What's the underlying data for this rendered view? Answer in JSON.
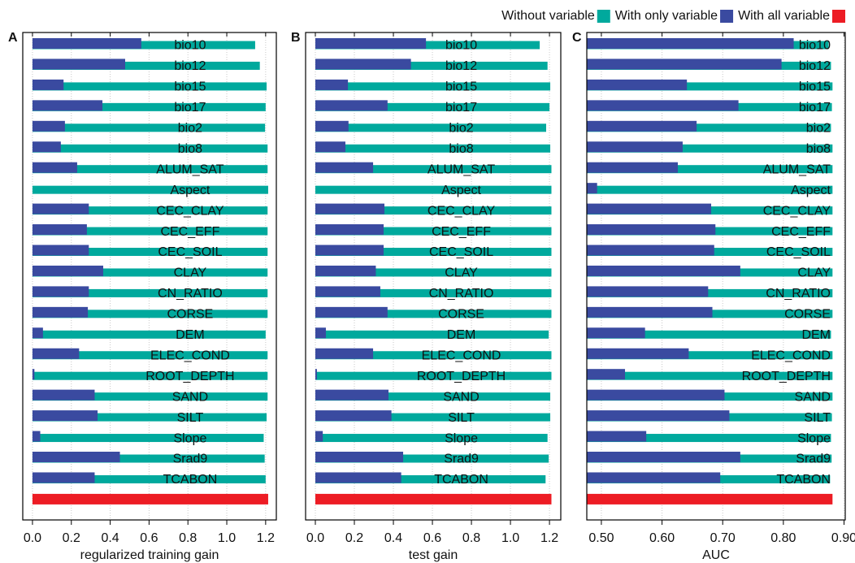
{
  "chart_data": [
    {
      "type": "bar",
      "orientation": "horizontal",
      "panel_label": "A",
      "xlabel": "regularized training gain",
      "categories": [
        "bio10",
        "bio12",
        "bio15",
        "bio17",
        "bio2",
        "bio8",
        "ALUM_SAT",
        "Aspect",
        "CEC_CLAY",
        "CEC_EFF",
        "CEC_SOIL",
        "CLAY",
        "CN_RATIO",
        "CORSE",
        "DEM",
        "ELEC_COND",
        "ROOT_DEPTH",
        "SAND",
        "SILT",
        "Slope",
        "Srad9",
        "TCABON",
        null
      ],
      "series": [
        {
          "name": "Without variable",
          "color": "#00a99d",
          "values": [
            1.146,
            1.17,
            1.205,
            1.2,
            1.197,
            1.21,
            1.21,
            1.213,
            1.21,
            1.21,
            1.21,
            1.21,
            1.21,
            1.21,
            1.2,
            1.21,
            1.21,
            1.21,
            1.205,
            1.19,
            1.195,
            1.2,
            null
          ]
        },
        {
          "name": "With only variable",
          "color": "#3a4aa0",
          "values": [
            0.56,
            0.477,
            0.16,
            0.36,
            0.167,
            0.146,
            0.23,
            0.0,
            0.29,
            0.28,
            0.29,
            0.364,
            0.29,
            0.285,
            0.054,
            0.24,
            0.01,
            0.32,
            0.335,
            0.04,
            0.45,
            0.32,
            null
          ]
        },
        {
          "name": "With all variable",
          "color": "#ed1c24",
          "values": [
            null,
            null,
            null,
            null,
            null,
            null,
            null,
            null,
            null,
            null,
            null,
            null,
            null,
            null,
            null,
            null,
            null,
            null,
            null,
            null,
            null,
            null,
            1.213
          ]
        }
      ],
      "xlim": [
        -0.05,
        1.255
      ],
      "xticks": [
        {
          "value": 0,
          "label": "0.0"
        },
        0.2,
        0.4,
        0.6,
        0.8,
        {
          "value": 1,
          "label": "1.0"
        },
        1.2
      ],
      "grid": true
    },
    {
      "type": "bar",
      "orientation": "horizontal",
      "panel_label": "B",
      "xlabel": "test gain",
      "categories": [
        "bio10",
        "bio12",
        "bio15",
        "bio17",
        "bio2",
        "bio8",
        "ALUM_SAT",
        "Aspect",
        "CEC_CLAY",
        "CEC_EFF",
        "CEC_SOIL",
        "CLAY",
        "CN_RATIO",
        "CORSE",
        "DEM",
        "ELEC_COND",
        "ROOT_DEPTH",
        "SAND",
        "SILT",
        "Slope",
        "Srad9",
        "TCABON",
        null
      ],
      "series": [
        {
          "color": "#00a99d",
          "values": [
            1.15,
            1.19,
            1.204,
            1.2,
            1.183,
            1.204,
            1.21,
            1.21,
            1.21,
            1.21,
            1.21,
            1.21,
            1.21,
            1.21,
            1.196,
            1.21,
            1.21,
            1.204,
            1.204,
            1.19,
            1.196,
            1.18,
            null
          ]
        },
        {
          "color": "#3a4aa0",
          "values": [
            0.567,
            0.49,
            0.167,
            0.37,
            0.17,
            0.154,
            0.296,
            0.0,
            0.354,
            0.35,
            0.35,
            0.31,
            0.333,
            0.37,
            0.054,
            0.296,
            0.008,
            0.375,
            0.39,
            0.038,
            0.45,
            0.44,
            null
          ]
        },
        {
          "color": "#ed1c24",
          "values": [
            null,
            null,
            null,
            null,
            null,
            null,
            null,
            null,
            null,
            null,
            null,
            null,
            null,
            null,
            null,
            null,
            null,
            null,
            null,
            null,
            null,
            null,
            1.21
          ]
        }
      ],
      "xlim": [
        -0.05,
        1.258
      ],
      "xticks": [
        {
          "value": 0,
          "label": "0.0"
        },
        0.2,
        0.4,
        0.6,
        0.8,
        {
          "value": 1,
          "label": "1.0"
        },
        1.2
      ],
      "grid": true
    },
    {
      "type": "bar",
      "orientation": "horizontal",
      "panel_label": "C",
      "xlabel": "AUC",
      "categories": [
        "bio10",
        "bio12",
        "bio15",
        "bio17",
        "bio2",
        "bio8",
        "ALUM_SAT",
        "Aspect",
        "CEC_CLAY",
        "CEC_EFF",
        "CEC_SOIL",
        "CLAY",
        "CN_RATIO",
        "CORSE",
        "DEM",
        "ELEC_COND",
        "ROOT_DEPTH",
        "SAND",
        "SILT",
        "Slope",
        "Srad9",
        "TCABON",
        null
      ],
      "series": [
        {
          "color": "#00a99d",
          "values": [
            0.8745,
            0.8785,
            0.881,
            0.88,
            0.8785,
            0.881,
            0.881,
            0.881,
            0.881,
            0.881,
            0.881,
            0.881,
            0.881,
            0.881,
            0.8785,
            0.881,
            0.881,
            0.881,
            0.88,
            0.8785,
            0.8795,
            0.877,
            null
          ]
        },
        {
          "color": "#3a4aa0",
          "values": [
            0.817,
            0.797,
            0.641,
            0.726,
            0.657,
            0.634,
            0.626,
            0.493,
            0.681,
            0.688,
            0.686,
            0.729,
            0.676,
            0.683,
            0.572,
            0.644,
            0.539,
            0.703,
            0.711,
            0.574,
            0.729,
            0.696,
            null
          ]
        },
        {
          "color": "#ed1c24",
          "values": [
            null,
            null,
            null,
            null,
            null,
            null,
            null,
            null,
            null,
            null,
            null,
            null,
            null,
            null,
            null,
            null,
            null,
            null,
            null,
            null,
            null,
            null,
            0.881
          ]
        }
      ],
      "xlim": [
        0.476,
        0.902
      ],
      "xticks": [
        {
          "value": 0.5,
          "label": "0.50"
        },
        {
          "value": 0.6,
          "label": "0.60"
        },
        {
          "value": 0.7,
          "label": "0.70"
        },
        {
          "value": 0.8,
          "label": "0.80"
        },
        {
          "value": 0.9,
          "label": "0.90"
        }
      ],
      "grid": true
    }
  ]
}
